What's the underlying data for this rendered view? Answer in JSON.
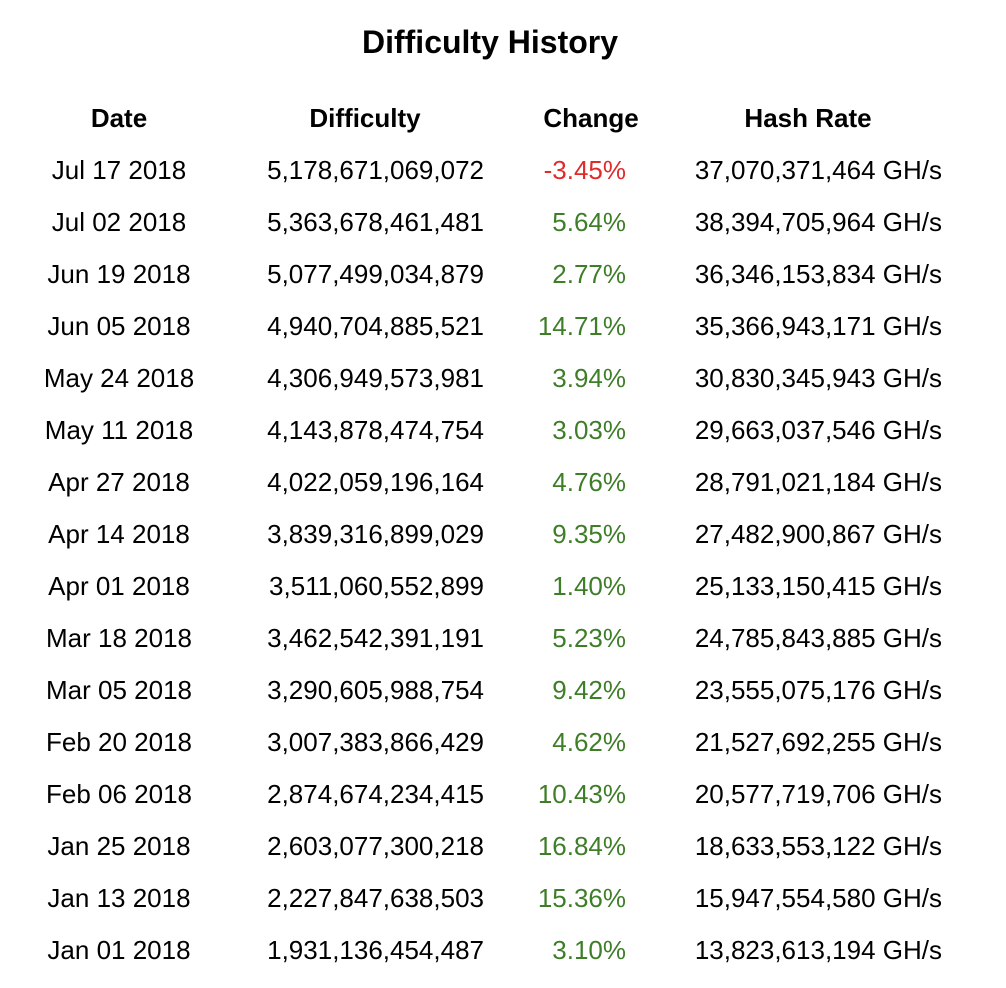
{
  "title": "Difficulty History",
  "columns": {
    "date": "Date",
    "difficulty": "Difficulty",
    "change": "Change",
    "hash_rate": "Hash Rate"
  },
  "colors": {
    "positive": "#3f7e29",
    "negative": "#e12b2b"
  },
  "rows": [
    {
      "date": "Jul 17 2018",
      "difficulty": "5,178,671,069,072",
      "change": "-3.45%",
      "hash_rate": "37,070,371,464 GH/s",
      "direction": "negative"
    },
    {
      "date": "Jul 02 2018",
      "difficulty": "5,363,678,461,481",
      "change": "5.64%",
      "hash_rate": "38,394,705,964 GH/s",
      "direction": "positive"
    },
    {
      "date": "Jun 19 2018",
      "difficulty": "5,077,499,034,879",
      "change": "2.77%",
      "hash_rate": "36,346,153,834 GH/s",
      "direction": "positive"
    },
    {
      "date": "Jun 05 2018",
      "difficulty": "4,940,704,885,521",
      "change": "14.71%",
      "hash_rate": "35,366,943,171 GH/s",
      "direction": "positive"
    },
    {
      "date": "May 24 2018",
      "difficulty": "4,306,949,573,981",
      "change": "3.94%",
      "hash_rate": "30,830,345,943 GH/s",
      "direction": "positive"
    },
    {
      "date": "May 11 2018",
      "difficulty": "4,143,878,474,754",
      "change": "3.03%",
      "hash_rate": "29,663,037,546 GH/s",
      "direction": "positive"
    },
    {
      "date": "Apr 27 2018",
      "difficulty": "4,022,059,196,164",
      "change": "4.76%",
      "hash_rate": "28,791,021,184 GH/s",
      "direction": "positive"
    },
    {
      "date": "Apr 14 2018",
      "difficulty": "3,839,316,899,029",
      "change": "9.35%",
      "hash_rate": "27,482,900,867 GH/s",
      "direction": "positive"
    },
    {
      "date": "Apr 01 2018",
      "difficulty": "3,511,060,552,899",
      "change": "1.40%",
      "hash_rate": "25,133,150,415 GH/s",
      "direction": "positive"
    },
    {
      "date": "Mar 18 2018",
      "difficulty": "3,462,542,391,191",
      "change": "5.23%",
      "hash_rate": "24,785,843,885 GH/s",
      "direction": "positive"
    },
    {
      "date": "Mar 05 2018",
      "difficulty": "3,290,605,988,754",
      "change": "9.42%",
      "hash_rate": "23,555,075,176 GH/s",
      "direction": "positive"
    },
    {
      "date": "Feb 20 2018",
      "difficulty": "3,007,383,866,429",
      "change": "4.62%",
      "hash_rate": "21,527,692,255 GH/s",
      "direction": "positive"
    },
    {
      "date": "Feb 06 2018",
      "difficulty": "2,874,674,234,415",
      "change": "10.43%",
      "hash_rate": "20,577,719,706 GH/s",
      "direction": "positive"
    },
    {
      "date": "Jan 25 2018",
      "difficulty": "2,603,077,300,218",
      "change": "16.84%",
      "hash_rate": "18,633,553,122 GH/s",
      "direction": "positive"
    },
    {
      "date": "Jan 13 2018",
      "difficulty": "2,227,847,638,503",
      "change": "15.36%",
      "hash_rate": "15,947,554,580 GH/s",
      "direction": "positive"
    },
    {
      "date": "Jan 01 2018",
      "difficulty": "1,931,136,454,487",
      "change": "3.10%",
      "hash_rate": "13,823,613,194 GH/s",
      "direction": "positive"
    }
  ]
}
